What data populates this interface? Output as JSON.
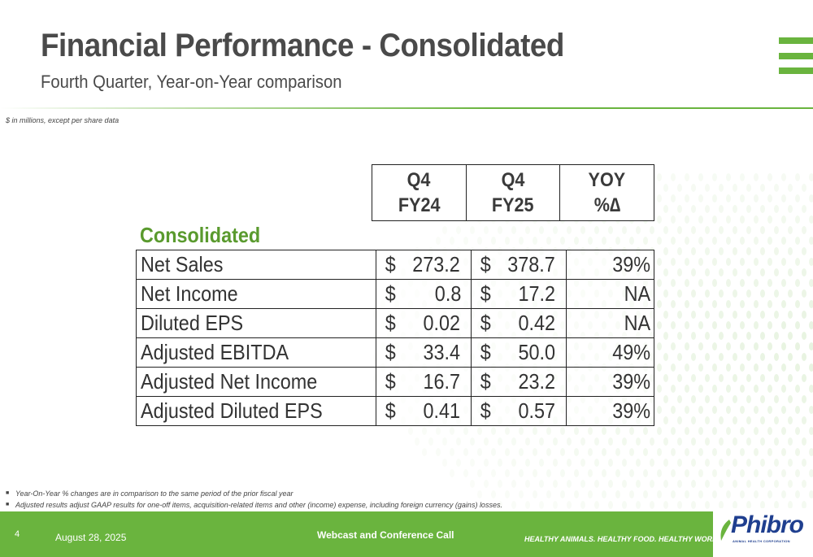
{
  "header": {
    "title": "Financial Performance - Consolidated",
    "subtitle": "Fourth Quarter, Year-on-Year comparison",
    "units_note": "$ in millions, except per share data"
  },
  "table": {
    "columns": [
      {
        "line1": "Q4",
        "line2": "FY24"
      },
      {
        "line1": "Q4",
        "line2": "FY25"
      },
      {
        "line1": "YOY",
        "line2": "%∆"
      }
    ],
    "section_label": "Consolidated",
    "currency_symbol": "$",
    "rows": [
      {
        "label": "Net Sales",
        "fy24": "273.2",
        "fy25": "378.7",
        "yoy": "39%"
      },
      {
        "label": "Net Income",
        "fy24": "0.8",
        "fy25": "17.2",
        "yoy": "NA"
      },
      {
        "label": "Diluted EPS",
        "fy24": "0.02",
        "fy25": "0.42",
        "yoy": "NA"
      },
      {
        "label": "Adjusted EBITDA",
        "fy24": "33.4",
        "fy25": "50.0",
        "yoy": "49%"
      },
      {
        "label": "Adjusted Net Income",
        "fy24": "16.7",
        "fy25": "23.2",
        "yoy": "39%"
      },
      {
        "label": "Adjusted Diluted EPS",
        "fy24": "0.41",
        "fy25": "0.57",
        "yoy": "39%"
      }
    ]
  },
  "footnotes": [
    "Year-On-Year % changes are in comparison to the same period of the prior fiscal year",
    "Adjusted results adjust GAAP results for one-off items, acquisition-related items and other (income) expense, including foreign currency (gains)  losses."
  ],
  "footer": {
    "page_number": "4",
    "date": "August 28, 2025",
    "event": "Webcast and Conference Call",
    "tagline": "HEALTHY ANIMALS. HEALTHY FOOD. HEALTHY WORLD.®"
  },
  "logo": {
    "name": "Phibro",
    "subtitle": "ANIMAL HEALTH CORPORATION",
    "trademark": "®"
  },
  "colors": {
    "brand_green": "#6ab43e",
    "section_green": "#5a9a2e",
    "logo_blue": "#1f3f8f"
  }
}
